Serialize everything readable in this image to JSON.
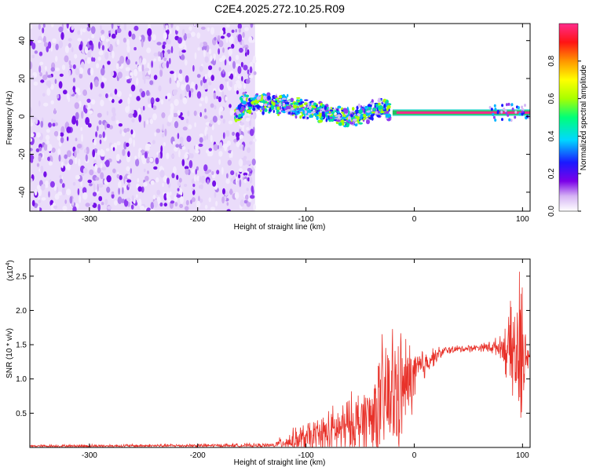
{
  "title": "C2E4.2025.272.10.25.R09",
  "chart_data": [
    {
      "type": "heatmap",
      "name": "spectrogram",
      "xlabel": "Height of straight line (km)",
      "ylabel": "Frequency (Hz)",
      "xlim": [
        -355,
        107
      ],
      "ylim": [
        -50,
        49
      ],
      "xticks": [
        -300,
        -200,
        -100,
        0,
        100
      ],
      "yticks": [
        -40,
        -20,
        0,
        20,
        40
      ],
      "noise_region_x": [
        -355,
        -147
      ],
      "signal_track": [
        {
          "x": -160,
          "f": 6
        },
        {
          "x": -140,
          "f": 7
        },
        {
          "x": -120,
          "f": 6
        },
        {
          "x": -100,
          "f": 4
        },
        {
          "x": -80,
          "f": 2
        },
        {
          "x": -60,
          "f": -1
        },
        {
          "x": -45,
          "f": 2
        },
        {
          "x": -30,
          "f": 5
        },
        {
          "x": -20,
          "f": 1
        },
        {
          "x": 0,
          "f": 2
        },
        {
          "x": 50,
          "f": 2
        },
        {
          "x": 107,
          "f": 2
        }
      ],
      "colorbar": {
        "label": "Normalized spectral amplitude",
        "range": [
          0,
          1
        ],
        "ticks": [
          "0.0",
          "0.2",
          "0.4",
          "0.6",
          "0.8"
        ]
      }
    },
    {
      "type": "line",
      "name": "snr",
      "xlabel": "Height of straight line (km)",
      "ylabel": "SNR (10 * v/v)",
      "multiplier": "(x10",
      "multiplier_exp": "4",
      "multiplier_close": ")",
      "xlim": [
        -355,
        107
      ],
      "ylim": [
        0,
        2.75
      ],
      "xticks": [
        -300,
        -200,
        -100,
        0,
        100
      ],
      "yticks": [
        "0.5",
        "1.0",
        "1.5",
        "2.0",
        "2.5"
      ],
      "color": "#e8322a",
      "envelope": [
        {
          "x": -355,
          "base": 0.02,
          "amp": 0.02
        },
        {
          "x": -130,
          "base": 0.03,
          "amp": 0.03
        },
        {
          "x": -120,
          "base": 0.08,
          "amp": 0.12
        },
        {
          "x": -100,
          "base": 0.12,
          "amp": 0.25
        },
        {
          "x": -80,
          "base": 0.2,
          "amp": 0.35
        },
        {
          "x": -60,
          "base": 0.3,
          "amp": 0.45
        },
        {
          "x": -40,
          "base": 0.45,
          "amp": 0.6
        },
        {
          "x": -30,
          "base": 0.65,
          "amp": 0.9
        },
        {
          "x": -22,
          "base": 0.75,
          "amp": 1.1
        },
        {
          "x": -10,
          "base": 0.85,
          "amp": 0.8
        },
        {
          "x": 0,
          "base": 1.05,
          "amp": 0.45
        },
        {
          "x": 15,
          "base": 1.3,
          "amp": 0.15
        },
        {
          "x": 30,
          "base": 1.42,
          "amp": 0.06
        },
        {
          "x": 60,
          "base": 1.46,
          "amp": 0.05
        },
        {
          "x": 80,
          "base": 1.47,
          "amp": 0.15
        },
        {
          "x": 90,
          "base": 1.4,
          "amp": 0.7
        },
        {
          "x": 98,
          "base": 1.3,
          "amp": 1.3
        },
        {
          "x": 102,
          "base": 1.4,
          "amp": 0.6
        },
        {
          "x": 107,
          "base": 1.35,
          "amp": 0.1
        }
      ]
    }
  ]
}
